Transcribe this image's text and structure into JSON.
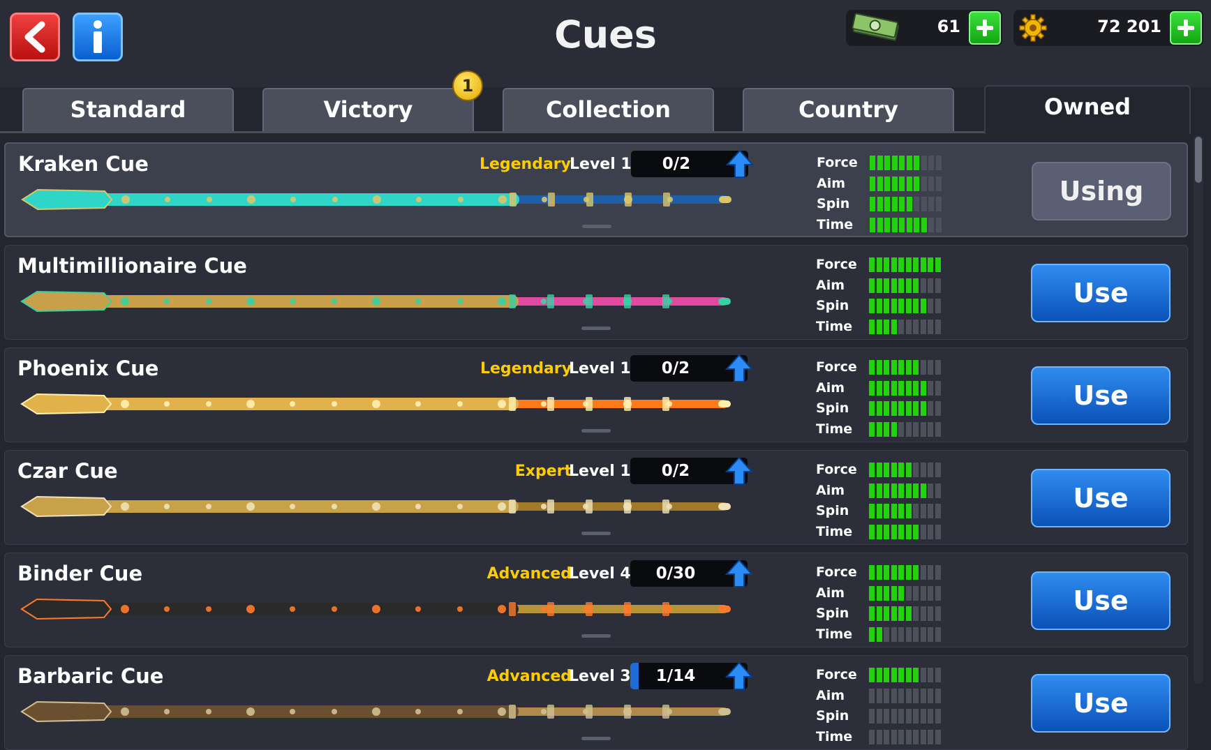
{
  "header": {
    "title": "Cues",
    "cash": {
      "icon": "cash-icon",
      "value": "61"
    },
    "coins": {
      "icon": "coin-gear-icon",
      "value": "72 201"
    }
  },
  "tabs": [
    {
      "label": "Standard",
      "active": false
    },
    {
      "label": "Victory",
      "active": false,
      "badge": "1"
    },
    {
      "label": "Collection",
      "active": false
    },
    {
      "label": "Country",
      "active": false
    },
    {
      "label": "Owned",
      "active": true
    }
  ],
  "stat_labels": {
    "force": "Force",
    "aim": "Aim",
    "spin": "Spin",
    "time": "Time"
  },
  "cues": [
    {
      "name": "Kraken Cue",
      "rarity": "Legendary",
      "level": "Level 1",
      "progress": "0/2",
      "progress_fraction": 0,
      "stats": {
        "force": 7,
        "aim": 7,
        "spin": 6,
        "time": 8
      },
      "button": "Using",
      "colors": [
        "#2fd6c8",
        "#1e5fa8",
        "#d9c56a"
      ]
    },
    {
      "name": "Multimillionaire Cue",
      "rarity": "",
      "level": "",
      "progress": "",
      "progress_fraction": 0,
      "stats": {
        "force": 10,
        "aim": 7,
        "spin": 8,
        "time": 4
      },
      "button": "Use",
      "colors": [
        "#c9a04a",
        "#e04aa0",
        "#3ad0a0"
      ]
    },
    {
      "name": "Phoenix Cue",
      "rarity": "Legendary",
      "level": "Level 1",
      "progress": "0/2",
      "progress_fraction": 0,
      "stats": {
        "force": 7,
        "aim": 8,
        "spin": 8,
        "time": 4
      },
      "button": "Use",
      "colors": [
        "#e2b24a",
        "#ff7a1a",
        "#fff0b0"
      ]
    },
    {
      "name": "Czar Cue",
      "rarity": "Expert",
      "level": "Level 1",
      "progress": "0/2",
      "progress_fraction": 0,
      "stats": {
        "force": 6,
        "aim": 8,
        "spin": 6,
        "time": 7
      },
      "button": "Use",
      "colors": [
        "#c9a14a",
        "#a07a2a",
        "#efe2b8"
      ]
    },
    {
      "name": "Binder Cue",
      "rarity": "Advanced",
      "level": "Level 4",
      "progress": "0/30",
      "progress_fraction": 0,
      "stats": {
        "force": 7,
        "aim": 5,
        "spin": 6,
        "time": 2
      },
      "button": "Use",
      "colors": [
        "#2a2a2a",
        "#b8923a",
        "#ff7a2a"
      ]
    },
    {
      "name": "Barbaric Cue",
      "rarity": "Advanced",
      "level": "Level 3",
      "progress": "1/14",
      "progress_fraction": 0.07,
      "stats": {
        "force": 7,
        "aim": 0,
        "spin": 0,
        "time": 0
      },
      "button": "Use",
      "colors": [
        "#6a5030",
        "#b08a4a",
        "#d0c090"
      ]
    }
  ]
}
